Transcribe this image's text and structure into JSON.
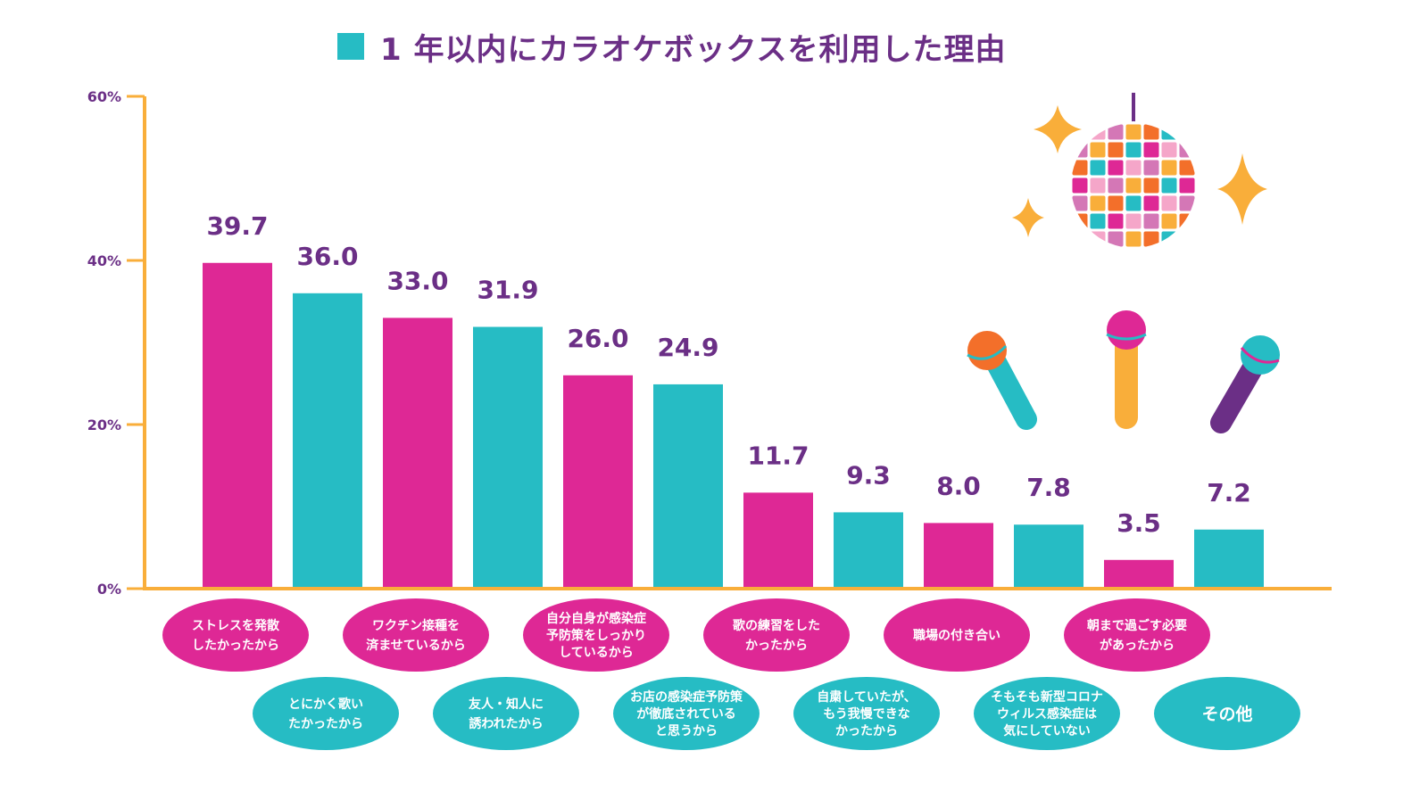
{
  "title": "1 年以内にカラオケボックスを利用した理由",
  "colors": {
    "magenta": "#de2895",
    "teal": "#26bcc4",
    "axis": "#f9ae3a",
    "text": "#6b2f86",
    "orange": "#f36f2a",
    "yellow": "#f9ae3a",
    "purple": "#6b2f86"
  },
  "chart_data": {
    "type": "bar",
    "title": "1 年以内にカラオケボックスを利用した理由",
    "ylim": [
      0,
      60
    ],
    "yticks": [
      "0%",
      "20%",
      "40%",
      "60%"
    ],
    "grid": false,
    "categories": [
      [
        "ストレスを発散",
        "したかったから"
      ],
      [
        "とにかく歌い",
        "たかったから"
      ],
      [
        "ワクチン接種を",
        "済ませているから"
      ],
      [
        "友人・知人に",
        "誘われたから"
      ],
      [
        "自分自身が感染症",
        "予防策をしっかり",
        "しているから"
      ],
      [
        "お店の感染症予防策",
        "が徹底されている",
        "と思うから"
      ],
      [
        "歌の練習をした",
        "かったから"
      ],
      [
        "自粛していたが、",
        "もう我慢できな",
        "かったから"
      ],
      [
        "職場の付き合い"
      ],
      [
        "そもそも新型コロナ",
        "ウィルス感染症は",
        "気にしていない"
      ],
      [
        "朝まで過ごす必要",
        "があったから"
      ],
      [
        "その他"
      ]
    ],
    "values": [
      39.7,
      36.0,
      33.0,
      31.9,
      26.0,
      24.9,
      11.7,
      9.3,
      8.0,
      7.8,
      3.5,
      7.2
    ],
    "value_labels": [
      "39.7",
      "36.0",
      "33.0",
      "31.9",
      "26.0",
      "24.9",
      "11.7",
      "9.3",
      "8.0",
      "7.8",
      "3.5",
      "7.2"
    ],
    "bar_colors": [
      "magenta",
      "teal",
      "magenta",
      "teal",
      "magenta",
      "teal",
      "magenta",
      "teal",
      "magenta",
      "teal",
      "magenta",
      "teal"
    ]
  },
  "decorations": {
    "disco_ball": "disco-ball-icon",
    "sparkles": "sparkle-icon",
    "microphones": [
      "microphone-orange-icon",
      "microphone-magenta-icon",
      "microphone-teal-icon"
    ]
  }
}
